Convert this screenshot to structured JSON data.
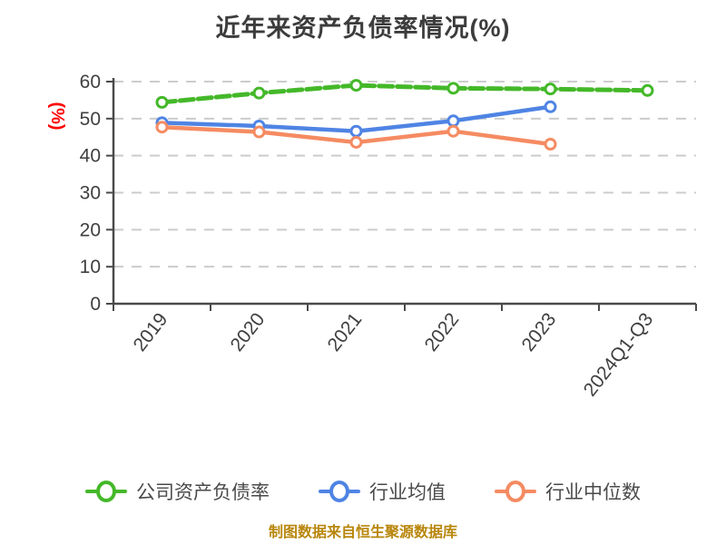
{
  "title": "近年来资产负债率情况(%)",
  "footer": "制图数据来自恒生聚源数据库",
  "colors": {
    "company_green": "#44b829",
    "industry_avg_blue": "#4f84e4",
    "industry_median_orange": "#f58b62",
    "title_text": "#3c3c3c",
    "tick_text": "#3f3f3f",
    "legend_text": "#4a4a4a",
    "gridline": "#cccccc",
    "axis": "#4a4a4a",
    "ylabel_red": "#ff0000",
    "footer_gold": "#b8860b",
    "marker_fill": "#ffffff"
  },
  "chart_data": {
    "type": "line",
    "title": "近年来资产负债率情况(%)",
    "categories": [
      "2019",
      "2020",
      "2021",
      "2022",
      "2023",
      "2024Q1-Q3"
    ],
    "series": [
      {
        "name": "公司资产负债率",
        "color": "#44b829",
        "line_style": "dashed",
        "marker": "circle-open",
        "values": [
          54.4,
          56.9,
          59.0,
          58.2,
          58.0,
          57.6
        ]
      },
      {
        "name": "行业均值",
        "color": "#4f84e4",
        "line_style": "solid",
        "marker": "circle-open",
        "values": [
          48.9,
          48.0,
          46.6,
          49.4,
          53.2,
          null
        ]
      },
      {
        "name": "行业中位数",
        "color": "#f58b62",
        "line_style": "solid",
        "marker": "circle-open",
        "values": [
          47.7,
          46.4,
          43.6,
          46.6,
          43.1,
          null
        ]
      }
    ],
    "xlabel": "",
    "ylabel": "(%)",
    "ylim": [
      0,
      60
    ],
    "yticks": [
      0,
      10,
      20,
      30,
      40,
      50,
      60
    ],
    "grid": "horizontal-dashed",
    "x_tick_rotation": -52,
    "legend_position": "bottom"
  }
}
